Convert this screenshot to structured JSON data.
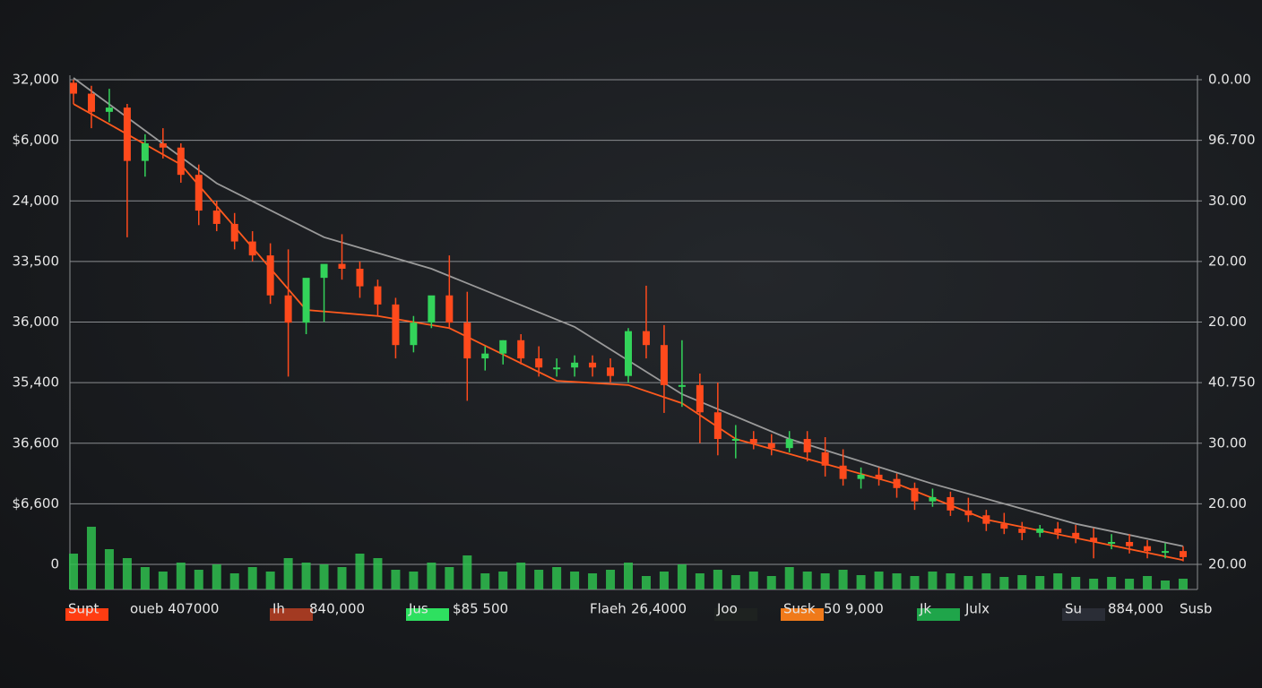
{
  "chart_data": {
    "type": "candlestick",
    "ylim": [
      0,
      8
    ],
    "yticks": [
      {
        "value": 8,
        "label": "32,000"
      },
      {
        "value": 7,
        "label": "$6,000"
      },
      {
        "value": 6,
        "label": "24,000"
      },
      {
        "value": 5,
        "label": "33,500"
      },
      {
        "value": 4,
        "label": "36,000"
      },
      {
        "value": 3,
        "label": "35,400"
      },
      {
        "value": 2,
        "label": "36,600"
      },
      {
        "value": 1,
        "label": "$6,600"
      },
      {
        "value": 0,
        "label": "0"
      }
    ],
    "y2lim": [
      0,
      8
    ],
    "y2ticks": [
      {
        "value": 8,
        "label": "0.0.00"
      },
      {
        "value": 7,
        "label": "96.700"
      },
      {
        "value": 6,
        "label": "30.00"
      },
      {
        "value": 5,
        "label": "20.00"
      },
      {
        "value": 4,
        "label": "20.00"
      },
      {
        "value": 3,
        "label": "40.750"
      },
      {
        "value": 2,
        "label": "30.00"
      },
      {
        "value": 1,
        "label": "20.00"
      },
      {
        "value": 0,
        "label": "20.00"
      }
    ],
    "grid": true,
    "up_color": "#33d35a",
    "down_color": "#ff4a1c",
    "candles": {
      "open": [
        7.95,
        7.77,
        7.47,
        7.54,
        6.66,
        6.95,
        6.88,
        6.43,
        5.84,
        5.62,
        5.33,
        5.1,
        4.44,
        3.99,
        4.73,
        4.96,
        4.88,
        4.59,
        4.29,
        3.62,
        3.99,
        4.44,
        3.99,
        3.4,
        3.48,
        3.7,
        3.4,
        3.25,
        3.25,
        3.33,
        3.25,
        3.11,
        3.85,
        3.62,
        2.96,
        2.96,
        2.51,
        2.07,
        2.07,
        2.0,
        1.92,
        2.07,
        1.85,
        1.63,
        1.41,
        1.48,
        1.41,
        1.26,
        1.04,
        1.11,
        0.89,
        0.81,
        0.67,
        0.59,
        0.52,
        0.59,
        0.52,
        0.44,
        0.37,
        0.37,
        0.3,
        0.22,
        0.22
      ],
      "high": [
        8.0,
        7.9,
        7.85,
        7.6,
        7.1,
        7.2,
        6.95,
        6.6,
        6.0,
        5.8,
        5.5,
        5.3,
        5.2,
        4.5,
        4.95,
        5.45,
        5.0,
        4.7,
        4.4,
        4.1,
        4.2,
        5.1,
        4.5,
        3.6,
        3.7,
        3.8,
        3.6,
        3.4,
        3.45,
        3.45,
        3.4,
        3.9,
        4.6,
        3.95,
        3.7,
        3.15,
        3.0,
        2.3,
        2.2,
        2.15,
        2.2,
        2.2,
        2.1,
        1.9,
        1.6,
        1.6,
        1.5,
        1.35,
        1.25,
        1.2,
        1.1,
        0.9,
        0.85,
        0.7,
        0.65,
        0.7,
        0.65,
        0.6,
        0.5,
        0.5,
        0.4,
        0.35,
        0.3
      ],
      "low": [
        7.6,
        7.2,
        7.3,
        5.4,
        6.4,
        6.7,
        6.3,
        5.6,
        5.5,
        5.2,
        5.0,
        4.3,
        3.1,
        3.8,
        4.0,
        4.7,
        4.4,
        4.1,
        3.4,
        3.5,
        3.9,
        3.9,
        2.7,
        3.2,
        3.3,
        3.3,
        3.1,
        3.1,
        3.1,
        3.1,
        3.0,
        3.0,
        3.4,
        2.5,
        2.6,
        2.0,
        1.8,
        1.75,
        1.9,
        1.8,
        1.85,
        1.7,
        1.45,
        1.3,
        1.25,
        1.3,
        1.1,
        0.9,
        0.95,
        0.8,
        0.7,
        0.55,
        0.5,
        0.4,
        0.45,
        0.42,
        0.35,
        0.1,
        0.25,
        0.18,
        0.1,
        0.1,
        0.05
      ],
      "close": [
        7.77,
        7.47,
        7.54,
        6.66,
        6.95,
        6.88,
        6.43,
        5.84,
        5.62,
        5.33,
        5.1,
        4.44,
        3.99,
        4.73,
        4.96,
        4.88,
        4.59,
        4.29,
        3.62,
        3.99,
        4.44,
        3.99,
        3.4,
        3.48,
        3.7,
        3.4,
        3.25,
        3.25,
        3.33,
        3.25,
        3.11,
        3.85,
        3.62,
        2.96,
        2.96,
        2.51,
        2.07,
        2.07,
        2.0,
        1.92,
        2.07,
        1.85,
        1.63,
        1.41,
        1.48,
        1.41,
        1.26,
        1.04,
        1.11,
        0.89,
        0.81,
        0.67,
        0.59,
        0.52,
        0.59,
        0.52,
        0.44,
        0.37,
        0.37,
        0.3,
        0.22,
        0.22,
        0.12
      ]
    },
    "volume": {
      "color": "#2fbf4f",
      "lim": [
        0,
        100
      ],
      "values": [
        40,
        70,
        45,
        35,
        25,
        20,
        30,
        22,
        28,
        18,
        25,
        20,
        35,
        30,
        28,
        25,
        40,
        35,
        22,
        20,
        30,
        25,
        38,
        18,
        20,
        30,
        22,
        25,
        20,
        18,
        22,
        30,
        15,
        20,
        28,
        18,
        22,
        16,
        20,
        15,
        25,
        20,
        18,
        22,
        16,
        20,
        18,
        15,
        20,
        18,
        15,
        18,
        14,
        16,
        15,
        18,
        14,
        12,
        14,
        12,
        15,
        10,
        12
      ]
    },
    "lines": [
      {
        "color": "#9a9a9a",
        "x": [
          0,
          8,
          14,
          20,
          28,
          34,
          40,
          48,
          56,
          62
        ],
        "values": [
          8.03,
          6.29,
          5.4,
          4.88,
          3.92,
          2.81,
          2.07,
          1.33,
          0.67,
          0.3
        ]
      },
      {
        "color": "#ff5a1e",
        "x": [
          0,
          6,
          13,
          17,
          21,
          27,
          31,
          34,
          37,
          46,
          51,
          62
        ],
        "values": [
          7.6,
          6.6,
          4.2,
          4.1,
          3.9,
          3.03,
          2.96,
          2.66,
          2.07,
          1.33,
          0.74,
          0.07
        ]
      }
    ],
    "legend": [
      {
        "label": "Supt",
        "color": "#ff3d12"
      },
      {
        "label": "oueb 407000"
      },
      {
        "label": "Ih",
        "color": "#a33a22"
      },
      {
        "label": "840,000"
      },
      {
        "label": "Jus",
        "color": "#2ee060"
      },
      {
        "label": "$85 500"
      },
      {
        "label": "Flaeh"
      },
      {
        "label": "26,4000"
      },
      {
        "label": "Joo",
        "color": "#1e2220"
      },
      {
        "label": "Susk",
        "color": "#f07a1a"
      },
      {
        "label": "50 9,000"
      },
      {
        "label": "Jk",
        "color": "#1fa54a"
      },
      {
        "label": "Julx"
      },
      {
        "label": "Su",
        "color": "#2a2d36"
      },
      {
        "label": "884,000"
      },
      {
        "label": "Susb"
      }
    ]
  }
}
